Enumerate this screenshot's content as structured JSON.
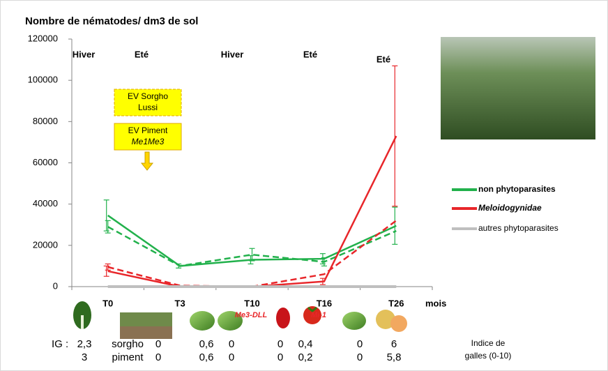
{
  "chart_data": {
    "type": "line",
    "title": "Nombre de nématodes/ dm3 de sol",
    "categories": [
      "T0",
      "T3",
      "T10",
      "T16",
      "T26"
    ],
    "x_unit_label": "mois",
    "ylim": [
      0,
      120000
    ],
    "yticks": [
      0,
      20000,
      40000,
      60000,
      80000,
      100000,
      120000
    ],
    "series": [
      {
        "name": "non phytoparasites",
        "color": "#22b14c",
        "dash": false,
        "values": [
          34500,
          10000,
          13000,
          13500,
          29500
        ],
        "errors": [
          7500,
          1000,
          2000,
          2500,
          9000
        ]
      },
      {
        "color": "#22b14c",
        "dash": true,
        "values": [
          29000,
          10000,
          15500,
          12000,
          27000
        ],
        "errors": [
          3000,
          null,
          3000,
          2000,
          null
        ]
      },
      {
        "name": "Meloidogynidae",
        "color": "#e8262a",
        "dash": false,
        "values": [
          7500,
          0,
          0,
          2500,
          73000
        ],
        "errors": [
          2500,
          null,
          null,
          1500,
          34000
        ]
      },
      {
        "color": "#e8262a",
        "dash": true,
        "values": [
          9500,
          500,
          0,
          6000,
          32000
        ],
        "errors": [
          1500,
          null,
          null,
          null,
          null
        ]
      },
      {
        "name": "autres phytoparasites",
        "color": "#bfbfbf",
        "dash": false,
        "values": [
          0,
          0,
          0,
          0,
          0
        ],
        "errors": [
          null,
          null,
          null,
          null,
          null
        ]
      }
    ],
    "seasons": [
      "Hiver",
      "Eté",
      "Hiver",
      "Eté",
      "Eté"
    ],
    "boxes": [
      [
        "EV Sorgho",
        "Lussi"
      ],
      [
        "EV Piment",
        "Me1Me3"
      ]
    ],
    "varieties": [
      "Me3-DLL",
      "Mi-1"
    ],
    "gall_index": {
      "label": "IG :",
      "rows": [
        [
          "2,3",
          "sorgho",
          "0",
          "0,6",
          "0",
          "0",
          "0,4",
          "0",
          "6"
        ],
        [
          "3",
          "piment",
          "0",
          "0,6",
          "0",
          "0",
          "0,2",
          "0",
          "5,8"
        ]
      ],
      "note_lines": [
        "Indice de",
        "galles (0-10)"
      ]
    }
  }
}
